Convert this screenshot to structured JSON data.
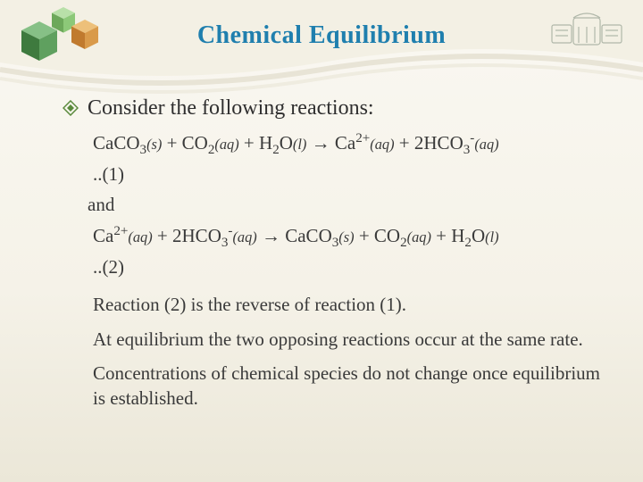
{
  "colors": {
    "title": "#1f7fae",
    "bullet": "#5a8a3c",
    "text": "#3a3a3a",
    "curve_light": "#f3f0e4",
    "curve_dark": "#e8e4d6",
    "cube_green_dark": "#3e7a3e",
    "cube_green_mid": "#5fa05f",
    "cube_green_light": "#86c086",
    "cube_orange_dark": "#c07a2e",
    "cube_orange_mid": "#d99a4a",
    "cube_orange_light": "#edc07a",
    "building_gray": "#7a8a7a"
  },
  "title": "Chemical Equilibrium",
  "bullet_text": "Consider the following reactions:",
  "eq1_html": "CaCO<sub>3</sub><span class=\"phase\">(s)</span> + CO<sub>2</sub><span class=\"phase\">(aq)</span> + H<sub>2</sub>O<span class=\"phase\">(l)</span> → Ca<sup>2+</sup><span class=\"phase\">(aq)</span> + 2HCO<sub>3</sub><sup>-</sup><span class=\"phase\">(aq)</span>",
  "eq1_label": "..(1)",
  "and_text": "and",
  "eq2_html": "Ca<sup>2+</sup><span class=\"phase\">(aq)</span> + 2HCO<sub>3</sub><sup>-</sup><span class=\"phase\">(aq)</span> → CaCO<sub>3</sub><span class=\"phase\">(s)</span> + CO<sub>2</sub><span class=\"phase\">(aq)</span> + H<sub>2</sub>O<span class=\"phase\">(l)</span>",
  "eq2_label": "..(2)",
  "para1": "Reaction (2) is the reverse of reaction (1).",
  "para2": "At equilibrium the two opposing reactions occur at the same rate.",
  "para3": "Concentrations of chemical species do not change once equilibrium is established."
}
